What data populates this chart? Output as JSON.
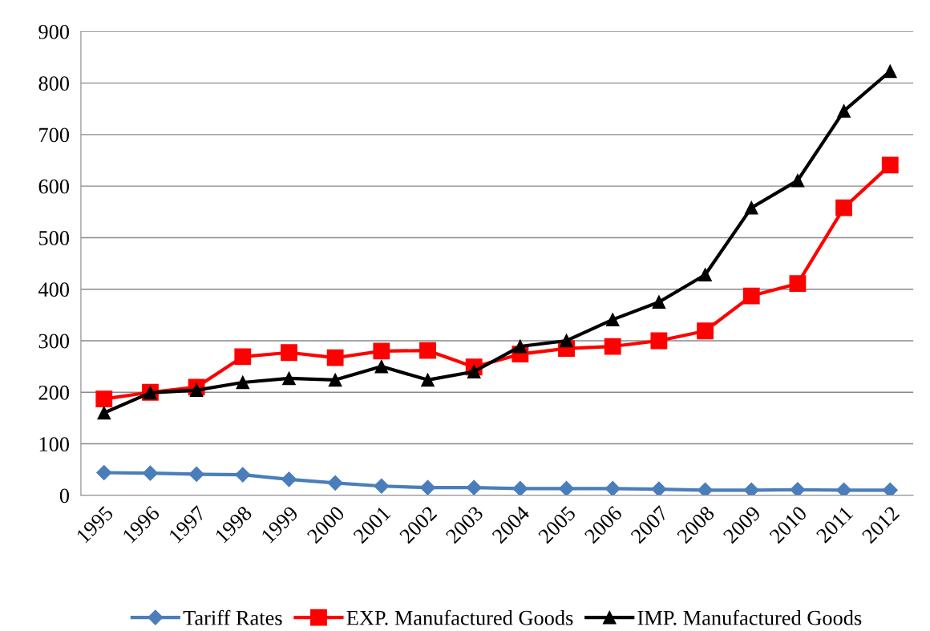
{
  "chart_data": {
    "type": "line",
    "categories": [
      "1995",
      "1996",
      "1997",
      "1998",
      "1999",
      "2000",
      "2001",
      "2002",
      "2003",
      "2004",
      "2005",
      "2006",
      "2007",
      "2008",
      "2009",
      "2010",
      "2011",
      "2012"
    ],
    "series": [
      {
        "name": "Tariff Rates",
        "color": "#4a7ebb",
        "marker": "diamond",
        "values": [
          44,
          43,
          41,
          40,
          31,
          24,
          18,
          15,
          15,
          13,
          13,
          13,
          12,
          10,
          10,
          11,
          10,
          10
        ]
      },
      {
        "name": "EXP. Manufactured Goods",
        "color": "#ff0000",
        "marker": "square",
        "values": [
          187,
          200,
          210,
          269,
          277,
          267,
          280,
          281,
          249,
          274,
          285,
          289,
          300,
          319,
          387,
          411,
          558,
          641
        ]
      },
      {
        "name": "IMP. Manufactured Goods",
        "color": "#000000",
        "marker": "triangle",
        "values": [
          160,
          199,
          204,
          219,
          227,
          224,
          250,
          224,
          240,
          289,
          300,
          341,
          375,
          428,
          558,
          611,
          746,
          823
        ]
      }
    ],
    "ylim": [
      0,
      900
    ],
    "yticks": [
      0,
      100,
      200,
      300,
      400,
      500,
      600,
      700,
      800,
      900
    ],
    "grid": "y",
    "legend": "bottom",
    "line_style": "solid"
  }
}
